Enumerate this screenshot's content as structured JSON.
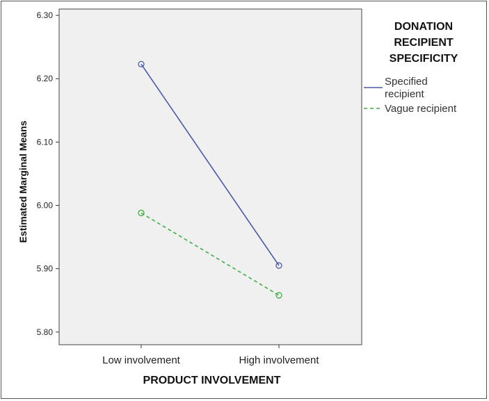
{
  "chart_data": {
    "type": "line",
    "title": "",
    "xlabel": "PRODUCT INVOLVEMENT",
    "ylabel": "Estimated Marginal Means",
    "categories": [
      "Low involvement",
      "High involvement"
    ],
    "ylim": [
      5.78,
      6.31
    ],
    "yticks": [
      5.8,
      5.9,
      6.0,
      6.1,
      6.2,
      6.3
    ],
    "ytick_labels": [
      "5.80",
      "5.90",
      "6.00",
      "6.10",
      "6.20",
      "6.30"
    ],
    "grid": false,
    "legend_position": "right",
    "legend_title_lines": [
      "DONATION",
      "RECIPIENT",
      "SPECIFICITY"
    ],
    "series": [
      {
        "name": "Specified recipient",
        "label_lines": [
          "Specified",
          "recipient"
        ],
        "values": [
          6.223,
          5.905
        ],
        "color": "#4a5aa8",
        "dash": "solid",
        "marker": "circle"
      },
      {
        "name": "Vague recipient",
        "label_lines": [
          "Vague recipient"
        ],
        "values": [
          5.988,
          5.858
        ],
        "color": "#3cb043",
        "dash": "dashed",
        "marker": "circle"
      }
    ],
    "colors": {
      "plot_background": "#f0f0f0",
      "axis": "#333333"
    }
  }
}
